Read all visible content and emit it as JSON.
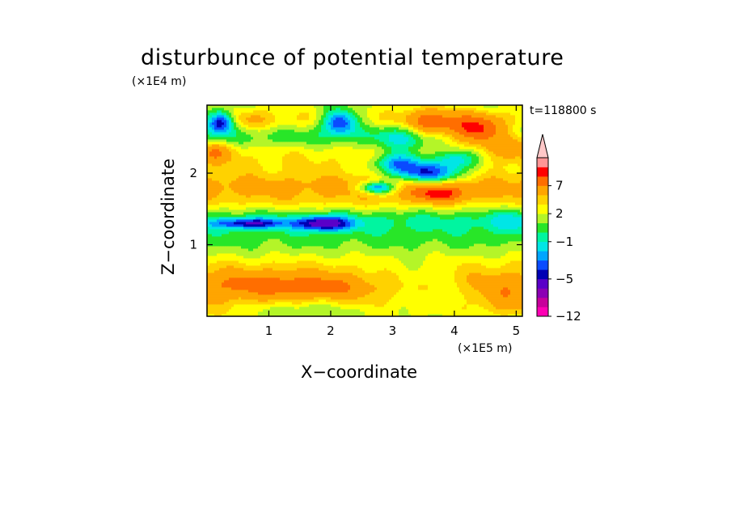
{
  "chart_data": {
    "type": "heatmap",
    "title": "disturbunce of potential temperature",
    "xlabel": "X−coordinate",
    "ylabel": "Z−coordinate",
    "x_unit": "(×1E5 m)",
    "y_unit": "(×1E4 m)",
    "annotation": "t=118800 s",
    "xlim": [
      0,
      5.1
    ],
    "ylim": [
      0,
      2.95
    ],
    "x_ticks": [
      1,
      2,
      3,
      4,
      5
    ],
    "y_ticks": [
      1,
      2
    ],
    "x_tick_labels": [
      "1",
      "2",
      "3",
      "4",
      "5"
    ],
    "y_tick_labels": [
      "1",
      "2"
    ],
    "colorbar": {
      "tick_labels": [
        "7",
        "2",
        "−1",
        "−5",
        "−12"
      ],
      "tick_levels": [
        7,
        2,
        -1,
        -5,
        -12
      ],
      "levels": [
        -12,
        -10,
        -8,
        -6,
        -5,
        -4,
        -3,
        -2,
        -1,
        0,
        1,
        2,
        3,
        5,
        7,
        9,
        11
      ],
      "colors": [
        "#ff00b4",
        "#c8009b",
        "#8c00b4",
        "#5a00c8",
        "#0000b4",
        "#0a4bff",
        "#00a5ff",
        "#00e6e6",
        "#00f5a0",
        "#28e628",
        "#b4f528",
        "#ffff00",
        "#ffd200",
        "#ffa500",
        "#ff6e00",
        "#ff0000",
        "#ff9696",
        "#ffc8c8"
      ],
      "extend": "max"
    },
    "field": {
      "background": 0.45,
      "bands": [
        {
          "z": 0.1,
          "v": 1.2,
          "sz": 0.14
        },
        {
          "z": 0.45,
          "v": 3.2,
          "sz": 0.22
        },
        {
          "z": 0.8,
          "v": 0.5,
          "sz": 0.12
        },
        {
          "z": 1.05,
          "v": -0.7,
          "sz": 0.2
        },
        {
          "z": 1.35,
          "v": -1.8,
          "sz": 0.13
        },
        {
          "z": 1.6,
          "v": 1.6,
          "sz": 0.14
        },
        {
          "z": 1.85,
          "v": 2.6,
          "sz": 0.14
        },
        {
          "z": 2.1,
          "v": 0.6,
          "sz": 0.1
        },
        {
          "z": 2.3,
          "v": 1.6,
          "sz": 0.14
        },
        {
          "z": 2.5,
          "v": -1.6,
          "sz": 0.14
        },
        {
          "z": 2.75,
          "v": 1.6,
          "sz": 0.13
        }
      ],
      "features": [
        {
          "x": 0.22,
          "z": 2.72,
          "sx": 0.16,
          "sz": 0.11,
          "v": -7.5
        },
        {
          "x": 2.15,
          "z": 2.72,
          "sx": 0.2,
          "sz": 0.12,
          "v": -6.5
        },
        {
          "x": 3.55,
          "z": 2.0,
          "sx": 0.4,
          "sz": 0.1,
          "v": -6.5
        },
        {
          "x": 3.1,
          "z": 2.15,
          "sx": 0.3,
          "sz": 0.1,
          "v": -5.0
        },
        {
          "x": 4.05,
          "z": 2.2,
          "sx": 0.25,
          "sz": 0.1,
          "v": -4.5
        },
        {
          "x": 2.75,
          "z": 1.8,
          "sx": 0.2,
          "sz": 0.06,
          "v": -6.5
        },
        {
          "x": 1.9,
          "z": 1.3,
          "sx": 0.3,
          "sz": 0.07,
          "v": -6.5
        },
        {
          "x": 0.7,
          "z": 1.3,
          "sx": 0.4,
          "sz": 0.05,
          "v": -5.0
        },
        {
          "x": 3.6,
          "z": 2.7,
          "sx": 0.3,
          "sz": 0.14,
          "v": 5.0
        },
        {
          "x": 4.35,
          "z": 2.6,
          "sx": 0.3,
          "sz": 0.14,
          "v": 7.0
        },
        {
          "x": 3.75,
          "z": 1.72,
          "sx": 0.3,
          "sz": 0.08,
          "v": 5.0
        },
        {
          "x": 4.95,
          "z": 2.4,
          "sx": 0.3,
          "sz": 0.12,
          "v": 3.5
        },
        {
          "x": 0.15,
          "z": 2.3,
          "sx": 0.2,
          "sz": 0.1,
          "v": 3.5
        },
        {
          "x": 0.8,
          "z": 0.45,
          "sx": 0.6,
          "sz": 0.12,
          "v": 2.0
        },
        {
          "x": 1.8,
          "z": 0.42,
          "sx": 0.5,
          "sz": 0.1,
          "v": 2.0
        },
        {
          "x": 3.7,
          "z": 0.3,
          "sx": 0.6,
          "sz": 0.2,
          "v": -2.0
        },
        {
          "x": 3.2,
          "z": 0.6,
          "sx": 0.5,
          "sz": 0.15,
          "v": -1.2
        },
        {
          "x": 1.6,
          "z": 0.1,
          "sx": 0.8,
          "sz": 0.1,
          "v": -2.2
        },
        {
          "x": 4.8,
          "z": 0.3,
          "sx": 0.3,
          "sz": 0.15,
          "v": 1.5
        },
        {
          "x": 3.2,
          "z": 2.5,
          "sx": 0.3,
          "sz": 0.15,
          "v": -2.5
        },
        {
          "x": 0.7,
          "z": 2.75,
          "sx": 0.3,
          "sz": 0.1,
          "v": 1.5
        },
        {
          "x": 4.95,
          "z": 1.35,
          "sx": 0.3,
          "sz": 0.12,
          "v": -1.3
        }
      ]
    }
  }
}
